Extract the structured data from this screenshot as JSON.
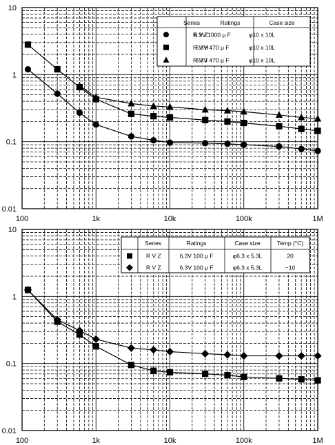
{
  "chart_data": [
    {
      "type": "line",
      "x_scale": "log",
      "y_scale": "log",
      "xlim": [
        100,
        1000000
      ],
      "ylim": [
        0.01,
        10
      ],
      "x_tick_labels": [
        "100",
        "1k",
        "10k",
        "100k",
        "1M"
      ],
      "y_tick_labels": [
        "10",
        "1",
        "0.1",
        "0.01"
      ],
      "grid": true,
      "legend": {
        "position": "top-right",
        "headers": [
          "Series",
          "Ratings",
          "Case size"
        ],
        "rows": [
          {
            "marker": "circle",
            "cells": [
              "R V Z",
              "6.3V 1000 μ F",
              "φ10 x 10L"
            ]
          },
          {
            "marker": "square",
            "cells": [
              "R V H",
              "6.3V  470 μ F",
              "φ10 x 10L"
            ]
          },
          {
            "marker": "triangle",
            "cells": [
              "R V J",
              "6.3V  470 μ F",
              "φ10 x 10L"
            ]
          }
        ]
      },
      "series": [
        {
          "marker": "circle",
          "x": [
            120,
            300,
            600,
            1000,
            3000,
            6000,
            10000,
            30000,
            60000,
            100000,
            300000,
            600000,
            1000000
          ],
          "y": [
            1.2,
            0.52,
            0.27,
            0.18,
            0.12,
            0.105,
            0.097,
            0.095,
            0.093,
            0.09,
            0.085,
            0.078,
            0.073
          ]
        },
        {
          "marker": "square",
          "x": [
            120,
            300,
            600,
            1000,
            3000,
            6000,
            10000,
            30000,
            60000,
            100000,
            300000,
            600000,
            1000000
          ],
          "y": [
            2.8,
            1.2,
            0.65,
            0.43,
            0.26,
            0.24,
            0.23,
            0.21,
            0.2,
            0.19,
            0.17,
            0.155,
            0.145
          ]
        },
        {
          "marker": "triangle",
          "x": [
            600,
            1000,
            3000,
            6000,
            10000,
            30000,
            60000,
            100000,
            300000,
            600000,
            1000000
          ],
          "y": [
            0.68,
            0.46,
            0.37,
            0.34,
            0.33,
            0.3,
            0.29,
            0.28,
            0.25,
            0.23,
            0.22
          ]
        }
      ]
    },
    {
      "type": "line",
      "x_scale": "log",
      "y_scale": "log",
      "xlim": [
        100,
        1000000
      ],
      "ylim": [
        0.01,
        10
      ],
      "x_tick_labels": [
        "100",
        "1k",
        "10k",
        "100k",
        "1M"
      ],
      "y_tick_labels": [
        "10",
        "1",
        "0.1",
        "0.01"
      ],
      "grid": true,
      "legend": {
        "position": "top-right",
        "headers": [
          "Series",
          "Ratings",
          "Case size",
          "Temp (°C)"
        ],
        "rows": [
          {
            "marker": "square",
            "cells": [
              "R V Z",
              "6.3V 100 μ F",
              "φ6.3 x 5.3L",
              "20"
            ]
          },
          {
            "marker": "diamond",
            "cells": [
              "R V Z",
              "6.3V 100 μ F",
              "φ6.3 x 5.3L",
              "−10"
            ]
          }
        ]
      },
      "series": [
        {
          "marker": "square",
          "x": [
            120,
            300,
            600,
            1000,
            3000,
            6000,
            10000,
            30000,
            60000,
            100000,
            300000,
            600000,
            1000000
          ],
          "y": [
            1.25,
            0.42,
            0.27,
            0.18,
            0.095,
            0.078,
            0.074,
            0.07,
            0.067,
            0.063,
            0.06,
            0.058,
            0.056
          ]
        },
        {
          "marker": "diamond",
          "x": [
            120,
            300,
            600,
            1000,
            3000,
            6000,
            10000,
            30000,
            60000,
            100000,
            300000,
            600000,
            1000000
          ],
          "y": [
            1.25,
            0.45,
            0.31,
            0.23,
            0.17,
            0.16,
            0.15,
            0.14,
            0.135,
            0.13,
            0.13,
            0.13,
            0.13
          ]
        }
      ]
    }
  ]
}
